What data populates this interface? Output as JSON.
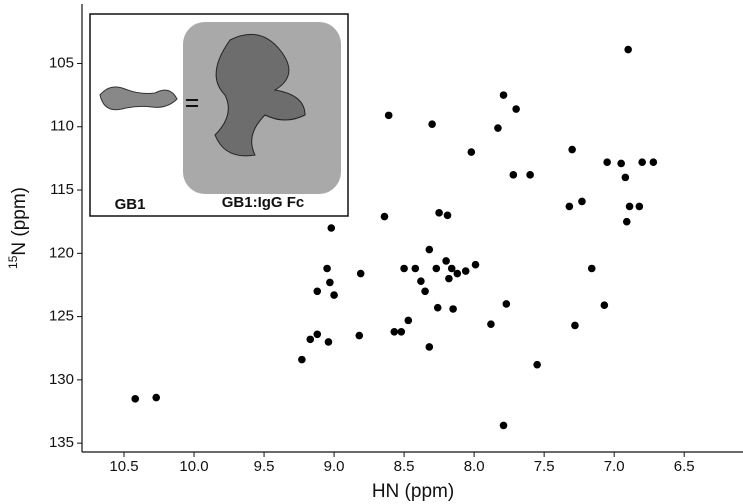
{
  "chart_data": {
    "type": "scatter",
    "xlabel": "HN (ppm)",
    "ylabel_sup": "15",
    "ylabel": "N (ppm)",
    "annotations": [
      "GB1",
      "GB1:IgG Fc"
    ],
    "xlim": [
      10.8,
      6.08
    ],
    "ylim": [
      100.3,
      135.7
    ],
    "xticks": [
      {
        "value": 10.5,
        "label": "10.5"
      },
      {
        "value": 10,
        "label": "10.0"
      },
      9.5,
      {
        "value": 9,
        "label": "9.0"
      },
      8.5,
      {
        "value": 8,
        "label": "8.0"
      },
      7.5,
      {
        "value": 7,
        "label": "7.0"
      },
      6.5
    ],
    "yticks": [
      105,
      110,
      115,
      120,
      125,
      130,
      135
    ],
    "color": "#000000",
    "x": [
      10.42,
      10.27,
      9.23,
      9.17,
      9.12,
      9.04,
      9.05,
      9.03,
      9.0,
      9.12,
      9.02,
      8.82,
      8.81,
      8.64,
      8.61,
      8.57,
      8.52,
      8.5,
      8.47,
      8.42,
      8.38,
      8.35,
      8.32,
      8.32,
      8.3,
      8.27,
      8.26,
      8.25,
      8.2,
      8.19,
      8.18,
      8.16,
      8.15,
      8.12,
      8.06,
      8.02,
      7.99,
      7.88,
      7.83,
      7.79,
      7.77,
      7.7,
      7.55,
      7.79,
      7.3,
      7.28,
      7.23,
      7.16,
      7.07,
      6.91,
      6.9,
      7.32,
      7.72,
      7.6,
      7.05,
      6.95,
      6.8,
      6.72,
      6.82,
      6.92,
      6.89
    ],
    "y": [
      131.5,
      131.4,
      128.4,
      126.8,
      126.4,
      127.0,
      121.2,
      122.3,
      123.3,
      123.0,
      118.0,
      126.5,
      121.6,
      117.1,
      109.1,
      126.2,
      126.2,
      121.2,
      125.3,
      121.2,
      122.2,
      123.0,
      119.7,
      127.4,
      109.8,
      121.2,
      124.3,
      116.8,
      120.6,
      117.0,
      122.0,
      121.2,
      124.4,
      121.6,
      121.4,
      112.0,
      120.9,
      125.6,
      110.1,
      107.5,
      124.0,
      108.6,
      128.8,
      133.6,
      111.8,
      125.7,
      115.9,
      121.2,
      124.1,
      117.5,
      103.9,
      116.3,
      113.8,
      113.8,
      112.8,
      112.9,
      112.8,
      112.8,
      116.3,
      114.0,
      116.3
    ]
  }
}
